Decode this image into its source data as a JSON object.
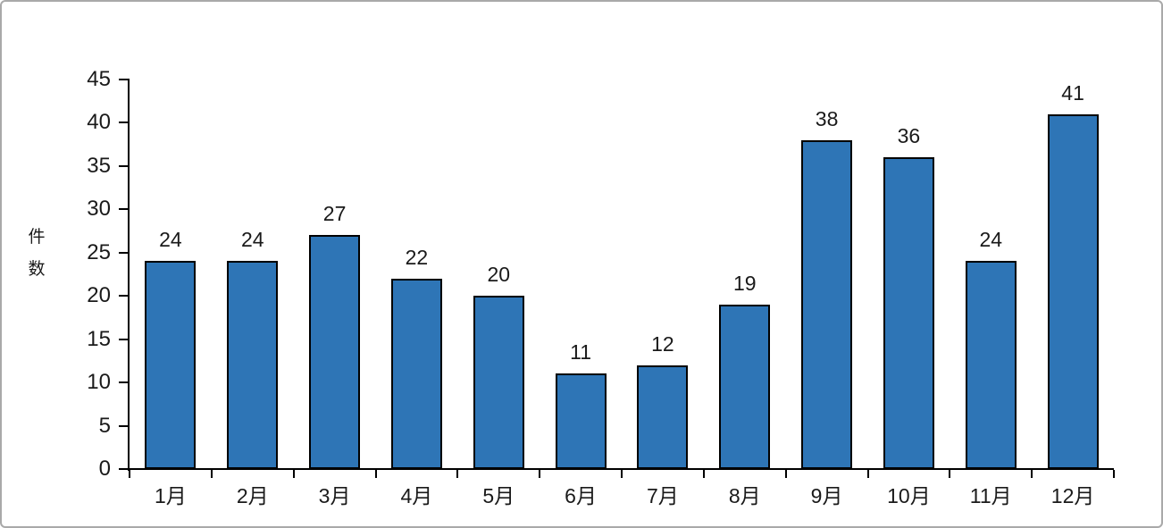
{
  "canvas": {
    "background_color": "#ffffff",
    "frame_border_color": "#a9a9a9"
  },
  "chart_data": {
    "type": "bar",
    "title": "",
    "categories": [
      "1月",
      "2月",
      "3月",
      "4月",
      "5月",
      "6月",
      "7月",
      "8月",
      "9月",
      "10月",
      "11月",
      "12月"
    ],
    "values": [
      24,
      24,
      27,
      22,
      20,
      11,
      12,
      19,
      38,
      36,
      24,
      41
    ],
    "xlabel": "",
    "ylabel": "件数",
    "ylim": [
      0,
      45
    ],
    "ytick_step": 5,
    "yticks": [
      0,
      5,
      10,
      15,
      20,
      25,
      30,
      35,
      40,
      45
    ],
    "grid": false,
    "legend_position": "none",
    "data_labels_shown": true,
    "bar_fill_color": "#2e75b6",
    "bar_border_color": "#000000",
    "axis_color": "#000000",
    "text_color": "#1a1a1a"
  }
}
